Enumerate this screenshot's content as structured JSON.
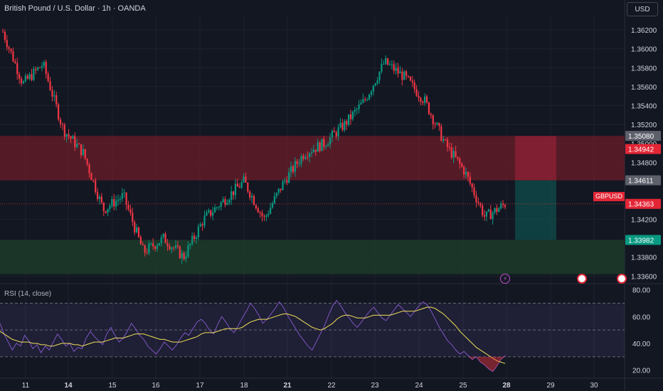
{
  "header": {
    "title": "British Pound / U.S. Dollar · 1h · OANDA",
    "currency_button": "USD"
  },
  "price_axis": {
    "ticks": [
      "1.36200",
      "1.36000",
      "1.35800",
      "1.35600",
      "1.35400",
      "1.35200",
      "1.35000",
      "1.34800",
      "1.34200",
      "1.33800",
      "1.33600"
    ],
    "tick_values": [
      1.362,
      1.36,
      1.358,
      1.356,
      1.354,
      1.352,
      1.35,
      1.348,
      1.342,
      1.338,
      1.336
    ],
    "tags": [
      {
        "label": "1.35080",
        "value": 1.3508,
        "color": "#5d606b"
      },
      {
        "label": "1.34942",
        "value": 1.34942,
        "color": "#e32636"
      },
      {
        "label": "1.34611",
        "value": 1.34611,
        "color": "#5d606b"
      },
      {
        "label": "1.34363",
        "value": 1.34363,
        "color": "#e32636"
      },
      {
        "label": "1.33982",
        "value": 1.33982,
        "color": "#089981"
      }
    ],
    "symbol_label": "GBPUSD"
  },
  "time_axis": {
    "labels": [
      "11",
      "14",
      "15",
      "16",
      "17",
      "18",
      "21",
      "22",
      "23",
      "24",
      "25",
      "28",
      "29",
      "30"
    ],
    "bold_labels": [
      "14",
      "21",
      "28"
    ]
  },
  "rsi_panel": {
    "label": "RSI (14, close)",
    "ticks": [
      "80.00",
      "60.00",
      "40.00",
      "20.00"
    ],
    "tick_values": [
      80,
      60,
      40,
      20
    ]
  },
  "colors": {
    "background": "#131722",
    "up": "#089981",
    "down": "#f23645",
    "rsi_line": "#7e57c2",
    "rsi_ma": "#f0e05a",
    "resistance_zone": "#6b1d2a",
    "support_zone": "#1e3d2c"
  },
  "events": [
    {
      "icon": "lightning-icon"
    },
    {
      "icon": "us-flag-icon"
    },
    {
      "icon": "us-flag-icon"
    }
  ],
  "chart_data": [
    {
      "type": "candlestick",
      "title": "British Pound / U.S. Dollar · 1h · OANDA",
      "ylim": [
        1.3355,
        1.3635
      ],
      "key_points": [
        {
          "day": "11",
          "price": 1.3618
        },
        {
          "day": "11",
          "price": 1.3563
        },
        {
          "day": "11",
          "price": 1.3584
        },
        {
          "day": "14",
          "price": 1.3515
        },
        {
          "day": "14",
          "price": 1.349
        },
        {
          "day": "15",
          "price": 1.343
        },
        {
          "day": "15",
          "price": 1.3445
        },
        {
          "day": "16",
          "price": 1.3385
        },
        {
          "day": "16",
          "price": 1.34
        },
        {
          "day": "17",
          "price": 1.338
        },
        {
          "day": "17",
          "price": 1.342
        },
        {
          "day": "18",
          "price": 1.344
        },
        {
          "day": "18",
          "price": 1.346
        },
        {
          "day": "21",
          "price": 1.342
        },
        {
          "day": "21",
          "price": 1.346
        },
        {
          "day": "22",
          "price": 1.349
        },
        {
          "day": "22",
          "price": 1.35
        },
        {
          "day": "23",
          "price": 1.352
        },
        {
          "day": "23",
          "price": 1.3545
        },
        {
          "day": "24",
          "price": 1.3586
        },
        {
          "day": "24",
          "price": 1.357
        },
        {
          "day": "25",
          "price": 1.3545
        },
        {
          "day": "25",
          "price": 1.35
        },
        {
          "day": "25",
          "price": 1.347
        },
        {
          "day": "28",
          "price": 1.3422
        },
        {
          "day": "28",
          "price": 1.3436
        }
      ],
      "zones": [
        {
          "name": "resistance",
          "from": 1.34611,
          "to": 1.3508
        },
        {
          "name": "support",
          "from": 1.3362,
          "to": 1.33982
        }
      ],
      "position": {
        "entry": 1.34611,
        "stop": 1.3508,
        "target": 1.33982
      },
      "last_price": 1.34363
    },
    {
      "type": "line",
      "title": "RSI (14, close)",
      "ylim": [
        14,
        83
      ],
      "levels": [
        70,
        50,
        30
      ],
      "series": [
        {
          "values": [
            55,
            47,
            41,
            35,
            40,
            38,
            46,
            42,
            36,
            39,
            33,
            38,
            35,
            41,
            47,
            43,
            38,
            40,
            34,
            37,
            36,
            44,
            49,
            45,
            42,
            39,
            47,
            52,
            46,
            41,
            44,
            49,
            55,
            51,
            46,
            43,
            38,
            35,
            32,
            36,
            41,
            38,
            35,
            39,
            44,
            48,
            46,
            51,
            56,
            58,
            55,
            50,
            47,
            54,
            60,
            56,
            51,
            48,
            53,
            59,
            64,
            70,
            66,
            61,
            55,
            58,
            62,
            66,
            71,
            67,
            61,
            56,
            51,
            46,
            42,
            38,
            35,
            41,
            47,
            53,
            61,
            68,
            72,
            68,
            63,
            59,
            55,
            52,
            56,
            60,
            64,
            67,
            63,
            59,
            57,
            61,
            65,
            69,
            66,
            63,
            60,
            64,
            68,
            71,
            69,
            64,
            58,
            52,
            47,
            42,
            39,
            35,
            32,
            34,
            31,
            28,
            30,
            26,
            24,
            21,
            19,
            23,
            28,
            31
          ]
        },
        {
          "values": [
            49,
            47,
            45,
            43,
            42,
            41,
            41,
            41,
            40,
            40,
            39,
            39,
            38,
            38,
            39,
            40,
            40,
            40,
            39,
            39,
            38,
            39,
            40,
            41,
            41,
            41,
            42,
            43,
            44,
            44,
            44,
            45,
            46,
            47,
            47,
            47,
            46,
            45,
            44,
            43,
            43,
            42,
            41,
            41,
            41,
            42,
            43,
            44,
            45,
            47,
            48,
            48,
            48,
            49,
            50,
            51,
            51,
            51,
            51,
            52,
            54,
            56,
            57,
            58,
            58,
            58,
            59,
            60,
            61,
            62,
            62,
            61,
            60,
            58,
            56,
            54,
            52,
            51,
            50,
            51,
            53,
            55,
            58,
            60,
            61,
            61,
            60,
            59,
            59,
            59,
            60,
            61,
            61,
            61,
            61,
            61,
            62,
            63,
            64,
            64,
            64,
            64,
            65,
            66,
            67,
            67,
            66,
            64,
            62,
            59,
            56,
            53,
            49,
            46,
            43,
            40,
            37,
            35,
            33,
            31,
            29,
            27,
            26,
            25
          ]
        }
      ]
    }
  ]
}
